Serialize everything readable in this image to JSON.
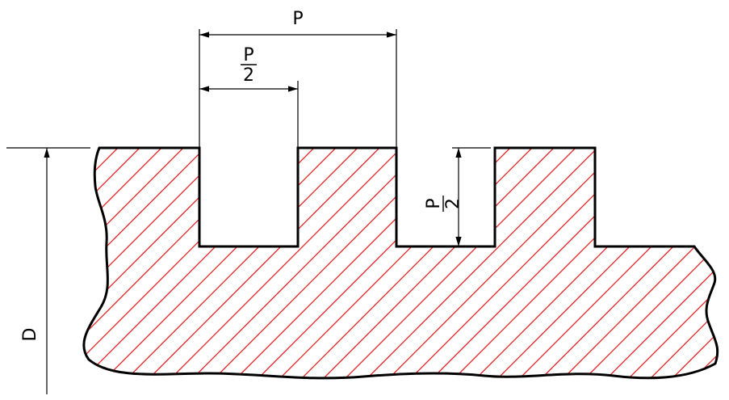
{
  "labels": {
    "pitch": "P",
    "half_pitch_num": "P",
    "half_pitch_den": "2",
    "depth_num": "P",
    "depth_den": "2",
    "diameter": "D"
  },
  "colors": {
    "outline": "#000000",
    "hatch": "#e02020",
    "background": "#ffffff"
  }
}
